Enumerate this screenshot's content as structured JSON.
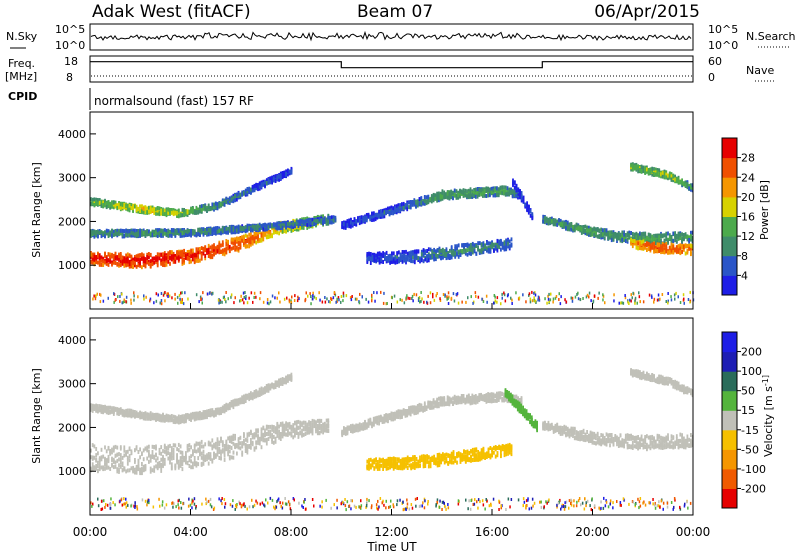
{
  "header": {
    "station": "Adak West (fitACF)",
    "beam": "Beam 07",
    "date": "06/Apr/2015"
  },
  "nsky_panel": {
    "left_label": "N.Sky",
    "right_label": "N.Search",
    "tick_top": "10^5",
    "tick_bottom": "10^0",
    "scale": "log"
  },
  "freq_panel": {
    "left_label_line1": "Freq.",
    "left_label_line2": "[MHz]",
    "right_label": "Nave",
    "left_ticks": [
      "18",
      "8"
    ],
    "right_ticks": [
      "60",
      "0"
    ],
    "freq_steps": [
      {
        "start_h": 0,
        "end_h": 10,
        "level": 0.78
      },
      {
        "start_h": 10,
        "end_h": 18,
        "level": 0.55
      },
      {
        "start_h": 18,
        "end_h": 24,
        "level": 0.78
      }
    ]
  },
  "cpid": {
    "label": "CPID",
    "program": "normalsound (fast) 157 RF"
  },
  "x_axis": {
    "label": "Time UT",
    "ticks": [
      "00:00",
      "04:00",
      "08:00",
      "12:00",
      "16:00",
      "20:00",
      "00:00"
    ],
    "range_hours": [
      0,
      24
    ]
  },
  "chart_data": [
    {
      "type": "heatmap",
      "name": "power",
      "ylabel": "Slant Range [km]",
      "yticks": [
        "1000",
        "2000",
        "3000",
        "4000"
      ],
      "ylim": [
        0,
        4500
      ],
      "colorbar": {
        "label": "Power [dB]",
        "ticks": [
          "4",
          "8",
          "12",
          "16",
          "20",
          "24",
          "28"
        ],
        "colors": [
          "#1e1ee6",
          "#2a55c8",
          "#3f8c6a",
          "#4caa4c",
          "#d7d200",
          "#f59600",
          "#f05000",
          "#e60000"
        ],
        "range": [
          0,
          32
        ]
      },
      "bands": [
        {
          "t": [
            0,
            2,
            4,
            6,
            7.5,
            9.5
          ],
          "r": [
            1150,
            1100,
            1200,
            1500,
            1850,
            2050
          ],
          "w": [
            130,
            150,
            150,
            150,
            120,
            100
          ],
          "v": [
            30,
            31,
            30,
            28,
            22,
            18
          ]
        },
        {
          "t": [
            0,
            4,
            7.5,
            9.8
          ],
          "r": [
            1720,
            1740,
            1900,
            2050
          ],
          "w": [
            70,
            70,
            60,
            60
          ],
          "v": [
            12,
            12,
            10,
            10
          ]
        },
        {
          "t": [
            0,
            2,
            3.5,
            5,
            6.5,
            8
          ],
          "r": [
            2450,
            2280,
            2180,
            2350,
            2750,
            3150
          ],
          "w": [
            70,
            70,
            70,
            70,
            70,
            60
          ],
          "v": [
            16,
            21,
            18,
            12,
            8,
            6
          ]
        },
        {
          "t": [
            10,
            12,
            14,
            16.5,
            17.2
          ],
          "r": [
            1900,
            2250,
            2600,
            2700,
            2600
          ],
          "w": [
            80,
            80,
            90,
            90,
            80
          ],
          "v": [
            6,
            8,
            14,
            14,
            8
          ]
        },
        {
          "t": [
            11,
            13,
            15,
            16.8
          ],
          "r": [
            1150,
            1200,
            1350,
            1500
          ],
          "w": [
            110,
            130,
            130,
            110
          ],
          "v": [
            6,
            9,
            12,
            9
          ]
        },
        {
          "t": [
            16.8,
            17.6
          ],
          "r": [
            2900,
            2100
          ],
          "w": [
            80,
            80
          ],
          "v": [
            6,
            6
          ]
        },
        {
          "t": [
            18,
            20,
            21,
            22.5,
            24
          ],
          "r": [
            2050,
            1750,
            1650,
            1600,
            1650
          ],
          "w": [
            70,
            90,
            110,
            110,
            110
          ],
          "v": [
            12,
            14,
            12,
            14,
            12
          ]
        },
        {
          "t": [
            21.5,
            22.5,
            24
          ],
          "r": [
            1500,
            1400,
            1350
          ],
          "w": [
            90,
            100,
            100
          ],
          "v": [
            24,
            28,
            26
          ]
        },
        {
          "t": [
            21.5,
            23,
            24
          ],
          "r": [
            3250,
            3050,
            2750
          ],
          "w": [
            70,
            70,
            70
          ],
          "v": [
            16,
            18,
            12
          ]
        }
      ]
    },
    {
      "type": "heatmap",
      "name": "velocity",
      "ylabel": "Slant Range [km]",
      "yticks": [
        "1000",
        "2000",
        "3000",
        "4000"
      ],
      "ylim": [
        0,
        4500
      ],
      "colorbar": {
        "label": "Velocity [m s^-1]",
        "ticks": [
          "-200",
          "-100",
          "-50",
          "-15",
          "15",
          "50",
          "100",
          "200"
        ],
        "colors": [
          "#e60000",
          "#f05a00",
          "#f59600",
          "#f5c000",
          "#c0c0b8",
          "#54b43c",
          "#2a6c5a",
          "#1e1eb4",
          "#1e1ee6"
        ],
        "range": [
          -250,
          250
        ]
      },
      "bands": [
        {
          "t": [
            0,
            2,
            4,
            6,
            7.5,
            9.5
          ],
          "r": [
            1300,
            1250,
            1350,
            1600,
            1900,
            2050
          ],
          "w": [
            300,
            300,
            280,
            260,
            200,
            140
          ],
          "v": [
            0,
            0,
            0,
            0,
            0,
            0
          ]
        },
        {
          "t": [
            0,
            2,
            3.5,
            5,
            6.5,
            8
          ],
          "r": [
            2450,
            2280,
            2180,
            2350,
            2750,
            3150
          ],
          "w": [
            70,
            70,
            70,
            70,
            70,
            60
          ],
          "v": [
            0,
            0,
            0,
            0,
            0,
            0
          ]
        },
        {
          "t": [
            10,
            12,
            14,
            16.5,
            17.2
          ],
          "r": [
            1900,
            2250,
            2600,
            2700,
            2600
          ],
          "w": [
            80,
            80,
            90,
            90,
            80
          ],
          "v": [
            0,
            0,
            0,
            0,
            0
          ]
        },
        {
          "t": [
            11,
            13,
            15,
            16.8
          ],
          "r": [
            1150,
            1200,
            1350,
            1500
          ],
          "w": [
            110,
            130,
            130,
            110
          ],
          "v": [
            -50,
            -60,
            -55,
            -50
          ]
        },
        {
          "t": [
            16.5,
            17.8
          ],
          "r": [
            2800,
            2000
          ],
          "w": [
            90,
            90
          ],
          "v": [
            60,
            60
          ]
        },
        {
          "t": [
            18,
            20,
            22,
            24
          ],
          "r": [
            2050,
            1750,
            1650,
            1700
          ],
          "w": [
            90,
            120,
            150,
            150
          ],
          "v": [
            0,
            0,
            0,
            0
          ]
        },
        {
          "t": [
            21.5,
            23,
            24
          ],
          "r": [
            3250,
            3050,
            2750
          ],
          "w": [
            70,
            70,
            70
          ],
          "v": [
            0,
            0,
            0
          ]
        }
      ]
    }
  ]
}
